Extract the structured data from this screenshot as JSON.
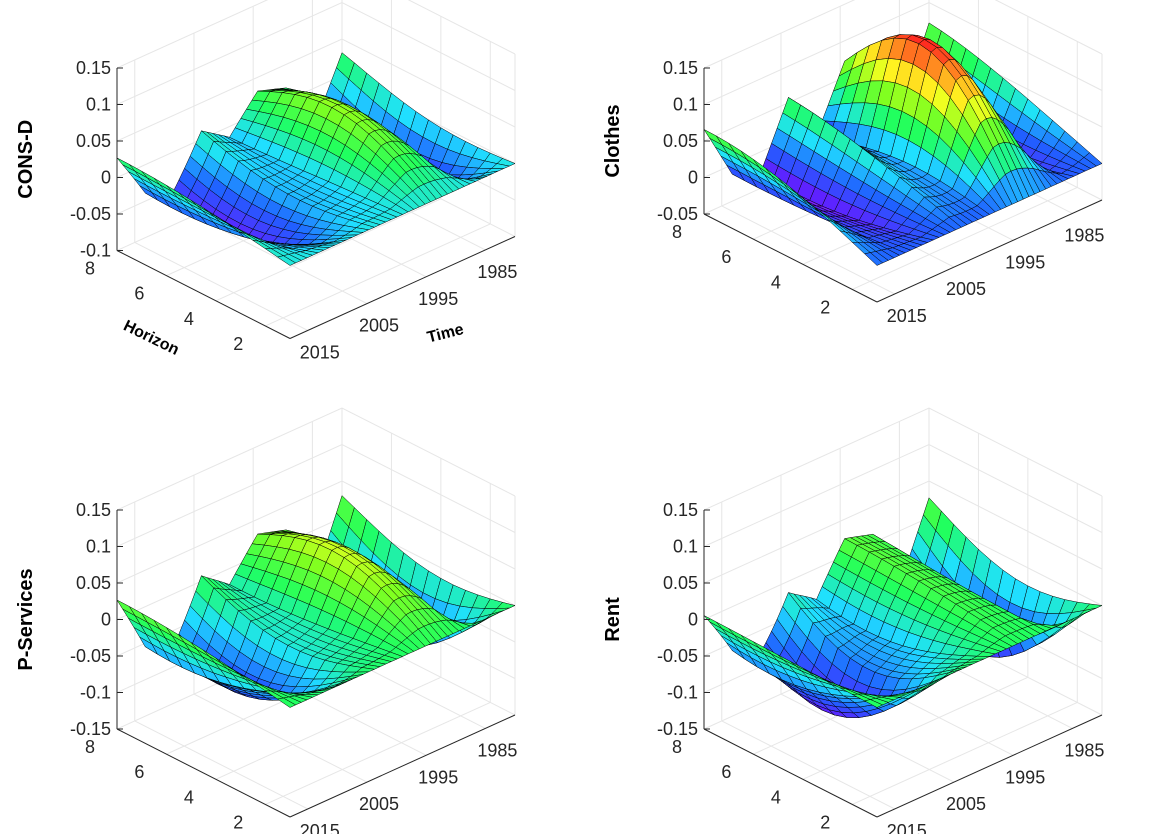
{
  "chart_data": [
    {
      "type": "surface3d",
      "zlabel": "CONS-D",
      "xlabel": "Horizon",
      "ylabel": "Time",
      "zticks": [
        "0.15",
        "0.1",
        "0.05",
        "0",
        "-0.05",
        "-0.1"
      ],
      "zlim": [
        -0.1,
        0.15
      ],
      "horizon_ticks": [
        "8",
        "6",
        "4",
        "2"
      ],
      "time_ticks": [
        "2015",
        "2005",
        "1995",
        "1985"
      ],
      "horizon_range": [
        1,
        8
      ],
      "time_range": [
        1980,
        2018
      ],
      "peak": 0.04,
      "trough_mid": -0.035,
      "trough_early": -0.04,
      "time_series_end": [
        0.052,
        -0.09,
        0.03,
        0.052,
        -0.02,
        0.035,
        -0.075,
        -0.06,
        0.045
      ]
    },
    {
      "type": "surface3d",
      "zlabel": "Clothes",
      "xlabel": "",
      "ylabel": "",
      "zticks": [
        "0.15",
        "0.1",
        "0.05",
        "0",
        "-0.05"
      ],
      "zlim": [
        -0.05,
        0.15
      ],
      "horizon_ticks": [
        "8",
        "6",
        "4",
        "2"
      ],
      "time_ticks": [
        "2015",
        "2005",
        "1995",
        "1985"
      ],
      "horizon_range": [
        1,
        8
      ],
      "time_range": [
        1980,
        2018
      ],
      "peak": 0.1,
      "trough_mid": -0.01,
      "trough_early": -0.015,
      "time_series_end": [
        0.12,
        -0.05,
        0.09,
        0.12,
        -0.02,
        0.1,
        -0.045,
        -0.02,
        0.11
      ]
    },
    {
      "type": "surface3d",
      "zlabel": "P-Services",
      "xlabel": "",
      "ylabel": "",
      "zticks": [
        "0.15",
        "0.1",
        "0.05",
        "0",
        "-0.05",
        "-0.1",
        "-0.15"
      ],
      "zlim": [
        -0.15,
        0.15
      ],
      "horizon_ticks": [
        "8",
        "6",
        "4",
        "2"
      ],
      "time_ticks": [
        "2015",
        "2005",
        "1995",
        "1985"
      ],
      "horizon_range": [
        1,
        8
      ],
      "time_range": [
        1980,
        2018
      ],
      "peak": 0.04,
      "trough_mid": -0.05,
      "trough_early": -0.06,
      "time_series_end": [
        0.05,
        -0.12,
        0.03,
        0.05,
        -0.03,
        0.035,
        -0.1,
        -0.085,
        0.045
      ]
    },
    {
      "type": "surface3d",
      "zlabel": "Rent",
      "xlabel": "",
      "ylabel": "",
      "zticks": [
        "0.15",
        "0.1",
        "0.05",
        "0",
        "-0.05",
        "-0.1",
        "-0.15"
      ],
      "zlim": [
        -0.15,
        0.15
      ],
      "horizon_ticks": [
        "8",
        "6",
        "4",
        "2"
      ],
      "time_ticks": [
        "2015",
        "2005",
        "1995",
        "1985"
      ],
      "horizon_range": [
        1,
        8
      ],
      "time_range": [
        1980,
        2018
      ],
      "peak": 0.0,
      "trough_mid": -0.08,
      "trough_early": -0.075,
      "time_series_end": [
        0.045,
        -0.12,
        0.02,
        0.04,
        -0.06,
        0.01,
        -0.1,
        -0.09,
        0.01
      ]
    }
  ],
  "colors": {
    "gridline": "#e6e6e6",
    "axis": "#262626",
    "mesh_edge": "#000000",
    "colormap": [
      "#ff2020",
      "#ffa020",
      "#ffff20",
      "#80ff20",
      "#20ff60",
      "#20e0ff",
      "#2060ff",
      "#6020ff",
      "#ff20ff"
    ]
  }
}
